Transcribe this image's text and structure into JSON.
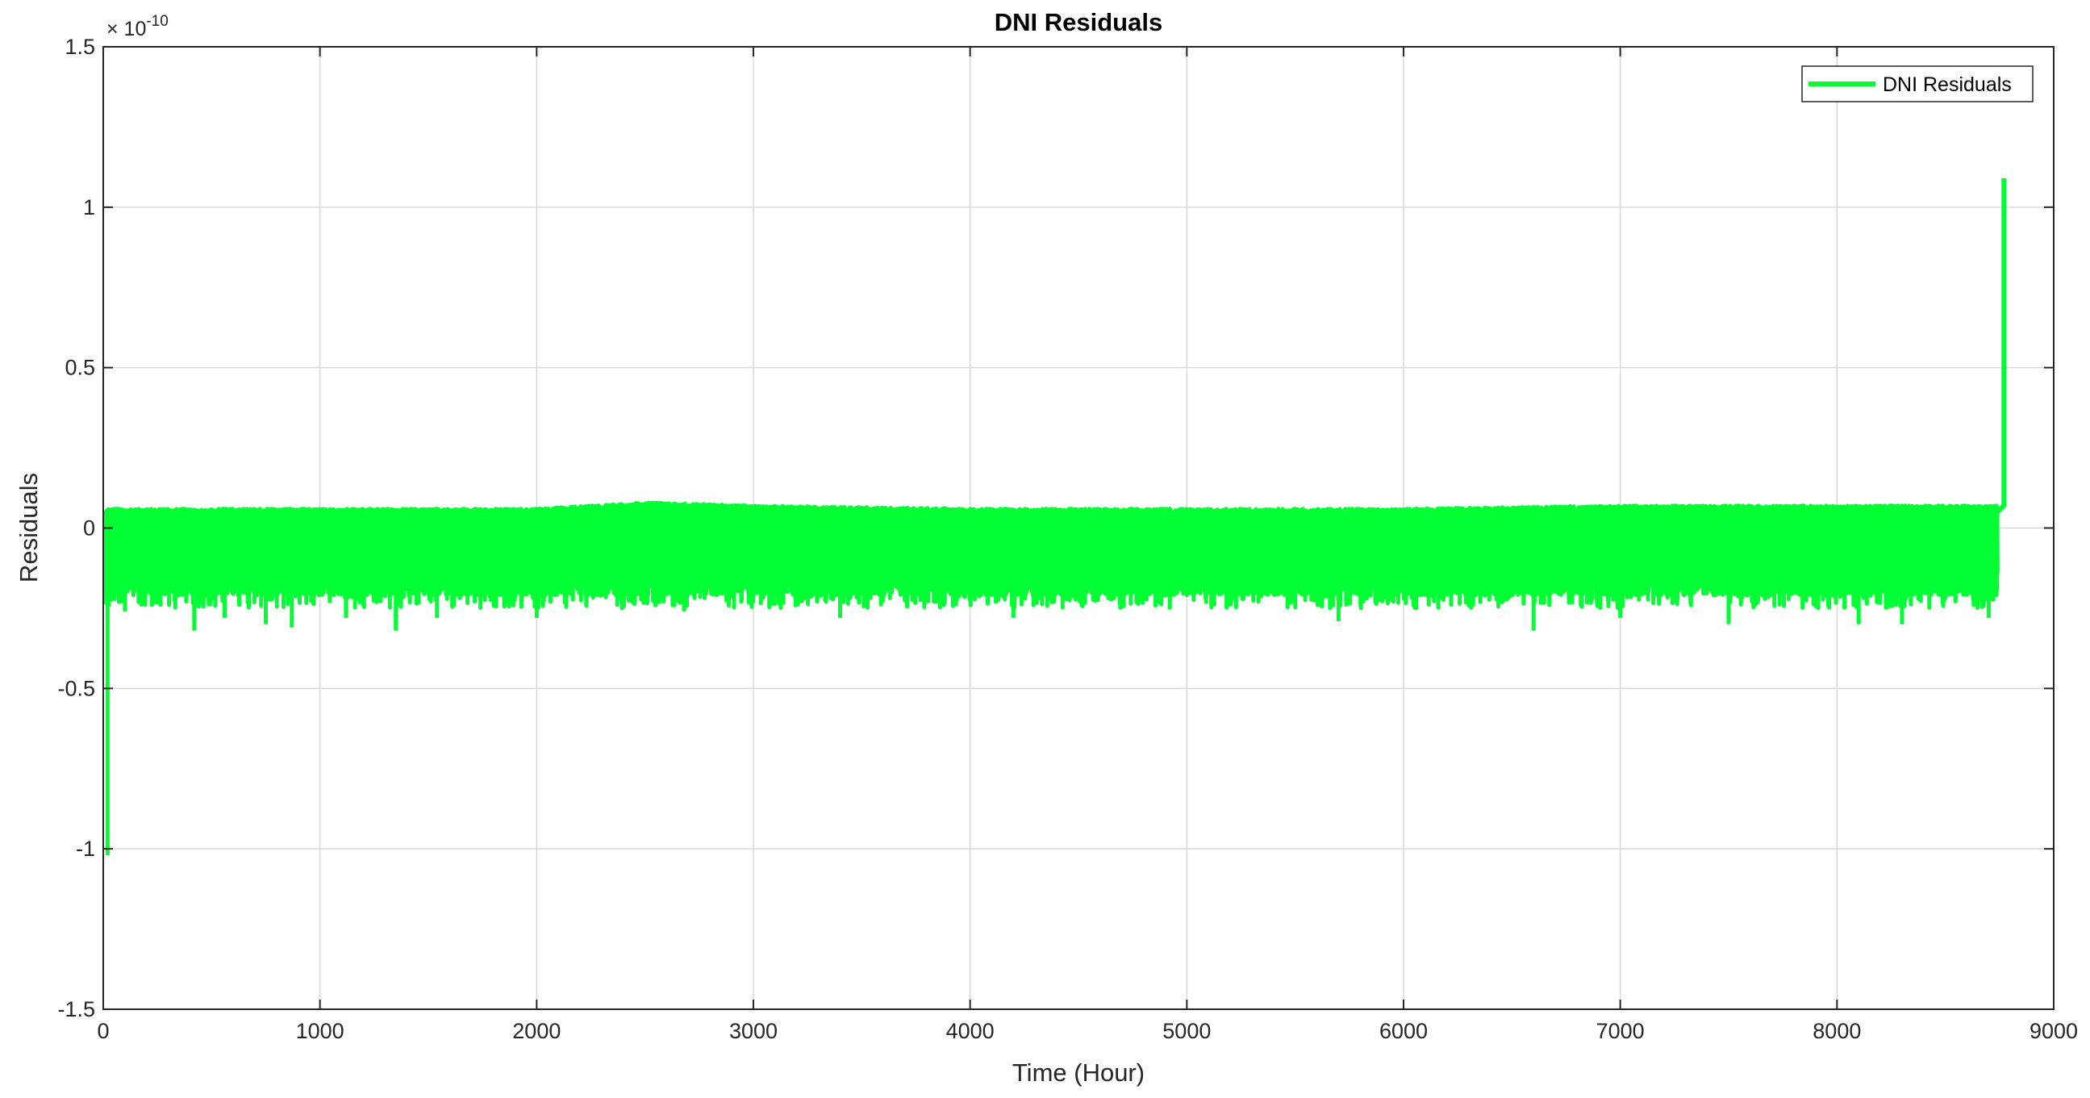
{
  "chart_data": {
    "type": "line",
    "title": "DNI Residuals",
    "xlabel": "Time (Hour)",
    "ylabel": "Residuals",
    "y_exponent_base": "× 10",
    "y_exponent_power": "-10",
    "xlim": [
      0,
      9000
    ],
    "ylim": [
      -1.5,
      1.5
    ],
    "x_ticks": [
      0,
      1000,
      2000,
      3000,
      4000,
      5000,
      6000,
      7000,
      8000,
      9000
    ],
    "x_tick_labels": [
      "0",
      "1000",
      "2000",
      "3000",
      "4000",
      "5000",
      "6000",
      "7000",
      "8000",
      "9000"
    ],
    "y_ticks": [
      -1.5,
      -1,
      -0.5,
      0,
      0.5,
      1,
      1.5
    ],
    "y_tick_labels": [
      "-1.5",
      "-1",
      "-0.5",
      "0",
      "0.5",
      "1",
      "1.5"
    ],
    "grid": true,
    "legend_position": "top-right",
    "series": [
      {
        "name": "DNI Residuals",
        "color": "#00ff33",
        "band_description": "dense hourly residuals fluctuating between about -0.3 and +0.08",
        "upper_envelope": {
          "x": [
            0,
            1000,
            2000,
            2500,
            3000,
            4000,
            5000,
            6000,
            7000,
            8000,
            8700
          ],
          "y": [
            0.06,
            0.06,
            0.06,
            0.08,
            0.07,
            0.06,
            0.06,
            0.06,
            0.07,
            0.07,
            0.07
          ]
        },
        "dips": [
          {
            "x": 20,
            "y": -1.02
          },
          {
            "x": 100,
            "y": -0.26
          },
          {
            "x": 420,
            "y": -0.32
          },
          {
            "x": 560,
            "y": -0.28
          },
          {
            "x": 750,
            "y": -0.3
          },
          {
            "x": 870,
            "y": -0.31
          },
          {
            "x": 1120,
            "y": -0.28
          },
          {
            "x": 1350,
            "y": -0.32
          },
          {
            "x": 1540,
            "y": -0.28
          },
          {
            "x": 1760,
            "y": -0.22
          },
          {
            "x": 2000,
            "y": -0.28
          },
          {
            "x": 2680,
            "y": -0.26
          },
          {
            "x": 3400,
            "y": -0.28
          },
          {
            "x": 4200,
            "y": -0.28
          },
          {
            "x": 5700,
            "y": -0.29
          },
          {
            "x": 6050,
            "y": -0.22
          },
          {
            "x": 6600,
            "y": -0.32
          },
          {
            "x": 7000,
            "y": -0.28
          },
          {
            "x": 7500,
            "y": -0.3
          },
          {
            "x": 8100,
            "y": -0.3
          },
          {
            "x": 8300,
            "y": -0.3
          },
          {
            "x": 8700,
            "y": -0.28
          }
        ],
        "end_spike": {
          "x": 8770,
          "y": 1.09
        }
      }
    ]
  }
}
